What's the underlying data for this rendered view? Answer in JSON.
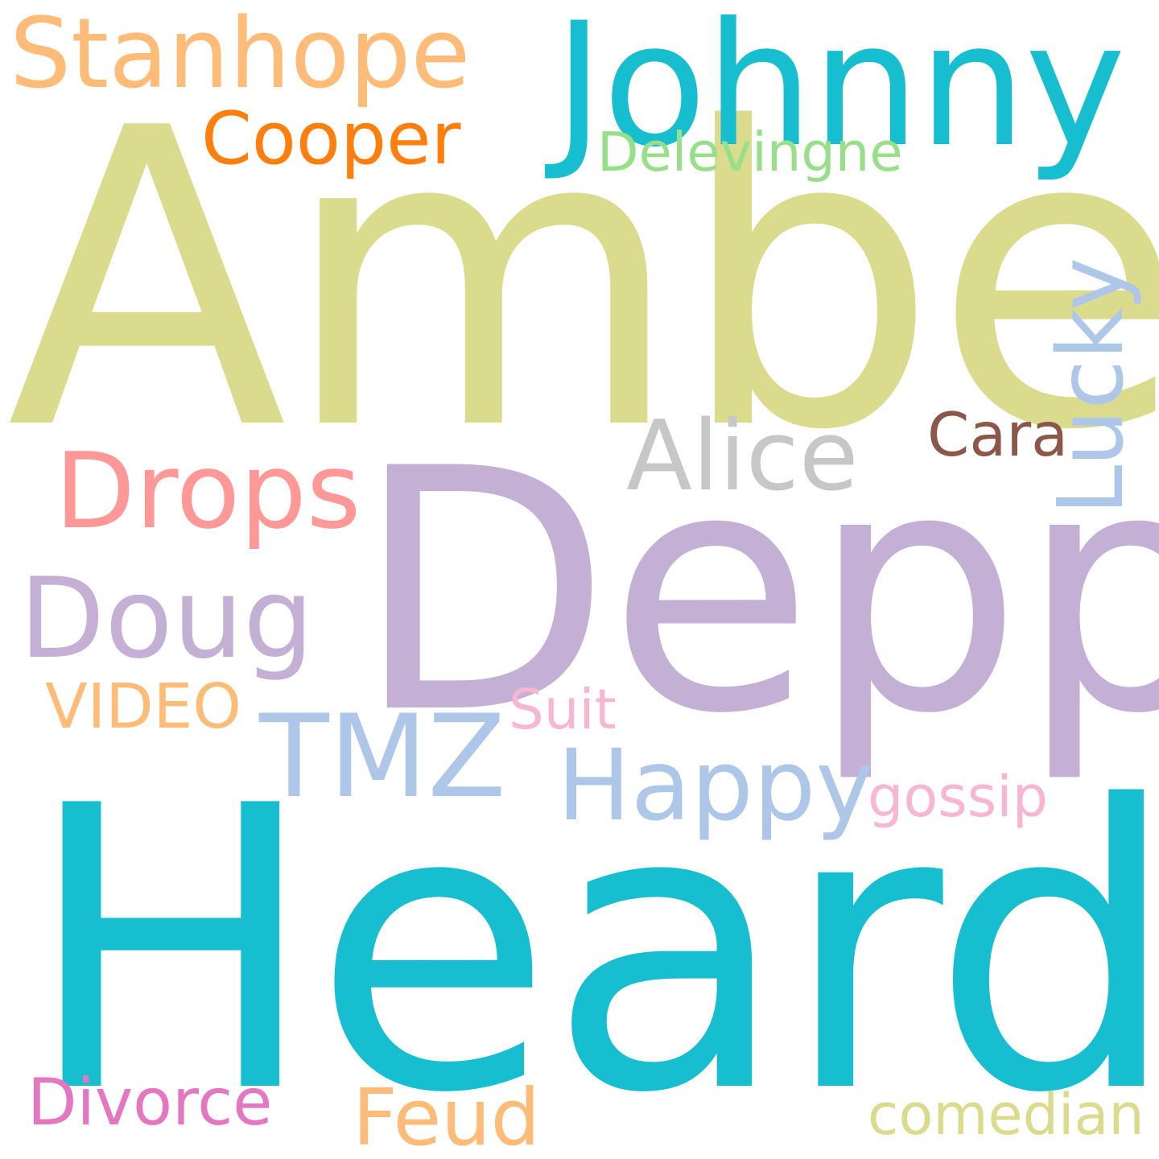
{
  "words": {
    "heard": {
      "text": "Heard",
      "color": "#17becf"
    },
    "amber": {
      "text": "Amber",
      "color": "#dbdb8d"
    },
    "depp": {
      "text": "Depp",
      "color": "#c5b0d5"
    },
    "johnny": {
      "text": "Johnny",
      "color": "#17becf"
    },
    "stanhope": {
      "text": "Stanhope",
      "color": "#ffbb78"
    },
    "cooper": {
      "text": "Cooper",
      "color": "#ff7f0e"
    },
    "delevingne": {
      "text": "Delevingne",
      "color": "#98df8a"
    },
    "lucky": {
      "text": "Lucky",
      "color": "#aec7e8"
    },
    "alice": {
      "text": "Alice",
      "color": "#c7c7c7"
    },
    "cara": {
      "text": "Cara",
      "color": "#8c564b"
    },
    "drops": {
      "text": "Drops",
      "color": "#ff9896"
    },
    "doug": {
      "text": "Doug",
      "color": "#c5b0d5"
    },
    "video": {
      "text": "VIDEO",
      "color": "#ffbb78"
    },
    "tmz": {
      "text": "TMZ",
      "color": "#aec7e8"
    },
    "suit": {
      "text": "Suit",
      "color": "#f7b6d2"
    },
    "happy": {
      "text": "Happy",
      "color": "#aec7e8"
    },
    "gossip": {
      "text": "gossip",
      "color": "#f7b6d2"
    },
    "divorce": {
      "text": "Divorce",
      "color": "#e377c2"
    },
    "feud": {
      "text": "Feud",
      "color": "#ffbb78"
    },
    "comedian": {
      "text": "comedian",
      "color": "#dbdb8d"
    }
  }
}
